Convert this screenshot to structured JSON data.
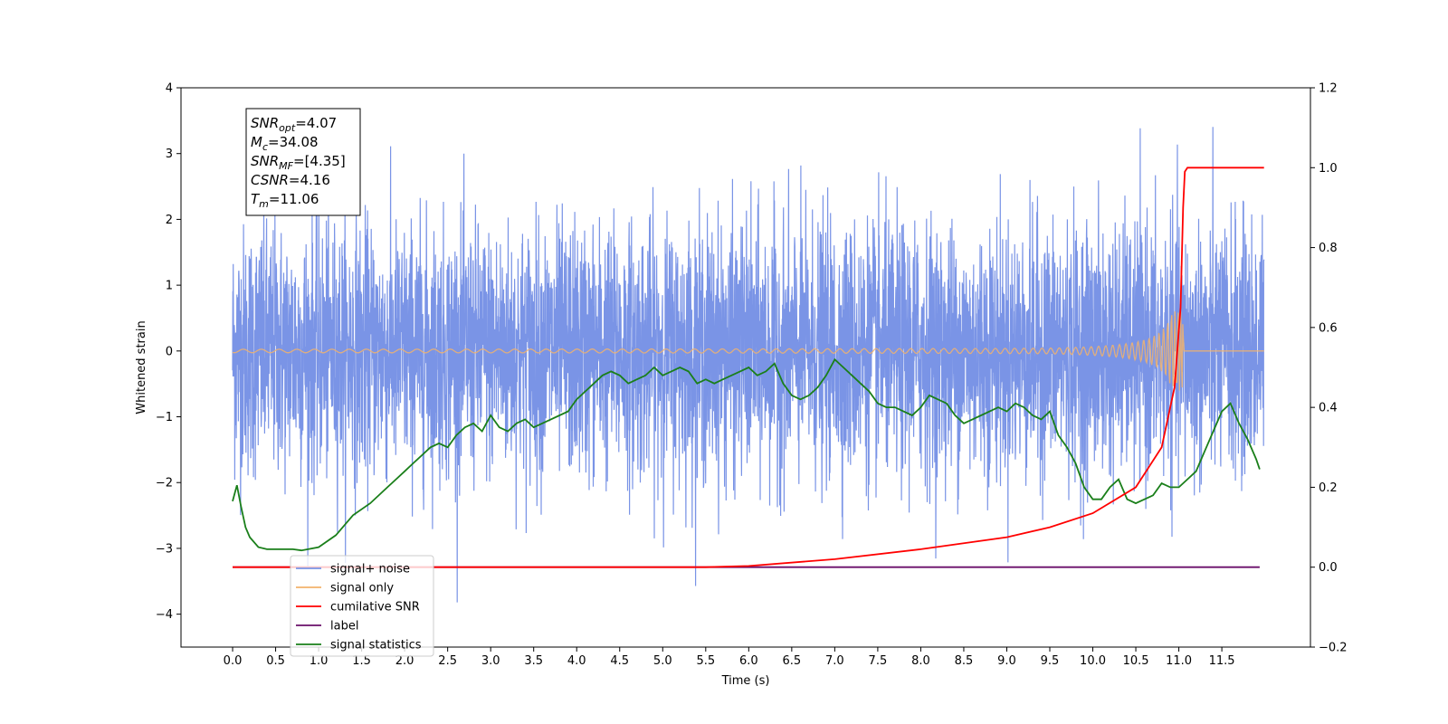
{
  "chart_data": {
    "type": "line",
    "xlabel": "Time (s)",
    "ylabel": "Whitened strain",
    "xlim": [
      -0.6,
      12.53
    ],
    "ylim": [
      -4.5,
      4.0
    ],
    "ylim_right": [
      -0.2,
      1.2
    ],
    "xticks": [
      "0.0",
      "0.5",
      "1.0",
      "1.5",
      "2.0",
      "2.5",
      "3.0",
      "3.5",
      "4.0",
      "4.5",
      "5.0",
      "5.5",
      "6.0",
      "6.5",
      "7.0",
      "7.5",
      "8.0",
      "8.5",
      "9.0",
      "9.5",
      "10.0",
      "10.5",
      "11.0",
      "11.5"
    ],
    "yticks_left": [
      "−4",
      "−3",
      "−2",
      "−1",
      "0",
      "1",
      "2",
      "3",
      "4"
    ],
    "yticks_right": [
      "−0.2",
      "0.0",
      "0.2",
      "0.4",
      "0.6",
      "0.8",
      "1.0",
      "1.2"
    ],
    "grid": false,
    "legend_position": "lower-left",
    "annotation": [
      {
        "base": "SNR",
        "sub": "opt",
        "rest": "=4.07"
      },
      {
        "base": "M",
        "sub": "c",
        "rest": "=34.08"
      },
      {
        "base": "SNR",
        "sub": "MF",
        "rest": "=[4.35]"
      },
      {
        "base": "CSNR",
        "sub": "",
        "rest": "=4.16"
      },
      {
        "base": "T",
        "sub": "m",
        "rest": "=11.06"
      }
    ],
    "series": [
      {
        "name": "signal+ noise",
        "color": "#7a94e6",
        "axis": "left",
        "x_range": [
          0.0,
          11.99
        ],
        "amplitude_envelope": [
          -4.1,
          3.65
        ],
        "description": "dense noise time series"
      },
      {
        "name": "signal only",
        "color": "#f2b36b",
        "axis": "left",
        "merger_time": 11.06
      },
      {
        "name": "cumilative SNR",
        "color": "#ff0000",
        "axis": "right",
        "x": [
          0.0,
          5.5,
          6.0,
          7.0,
          8.0,
          9.0,
          9.5,
          10.0,
          10.5,
          10.8,
          10.95,
          11.02,
          11.05,
          11.07,
          11.1,
          11.99
        ],
        "y": [
          0.0,
          0.0,
          0.003,
          0.02,
          0.045,
          0.075,
          0.1,
          0.135,
          0.2,
          0.3,
          0.45,
          0.65,
          0.9,
          0.99,
          1.0,
          1.0
        ]
      },
      {
        "name": "label",
        "color": "#6a0f6a",
        "axis": "right",
        "x": [
          0.0,
          11.94
        ],
        "y": [
          0.0,
          0.0
        ]
      },
      {
        "name": "signal statistics",
        "color": "#1a7f1a",
        "axis": "right",
        "x": [
          0.0,
          0.05,
          0.1,
          0.15,
          0.2,
          0.3,
          0.4,
          0.5,
          0.7,
          0.8,
          1.0,
          1.2,
          1.4,
          1.6,
          1.8,
          1.9,
          2.0,
          2.1,
          2.2,
          2.3,
          2.4,
          2.5,
          2.6,
          2.7,
          2.8,
          2.9,
          3.0,
          3.1,
          3.2,
          3.3,
          3.4,
          3.5,
          3.6,
          3.7,
          3.8,
          3.9,
          4.0,
          4.1,
          4.2,
          4.3,
          4.4,
          4.5,
          4.6,
          4.7,
          4.8,
          4.9,
          5.0,
          5.1,
          5.2,
          5.3,
          5.4,
          5.5,
          5.6,
          5.7,
          5.8,
          5.9,
          6.0,
          6.1,
          6.2,
          6.3,
          6.4,
          6.5,
          6.6,
          6.7,
          6.8,
          6.9,
          7.0,
          7.1,
          7.2,
          7.3,
          7.4,
          7.5,
          7.6,
          7.7,
          7.8,
          7.9,
          8.0,
          8.1,
          8.2,
          8.3,
          8.4,
          8.5,
          8.6,
          8.7,
          8.8,
          8.9,
          9.0,
          9.1,
          9.2,
          9.3,
          9.4,
          9.5,
          9.6,
          9.7,
          9.8,
          9.9,
          10.0,
          10.1,
          10.2,
          10.3,
          10.4,
          10.5,
          10.6,
          10.7,
          10.8,
          10.9,
          11.0,
          11.1,
          11.2,
          11.3,
          11.4,
          11.5,
          11.6,
          11.7,
          11.8,
          11.9,
          11.94
        ],
        "y": [
          0.165,
          0.205,
          0.15,
          0.1,
          0.075,
          0.05,
          0.045,
          0.045,
          0.045,
          0.042,
          0.05,
          0.08,
          0.13,
          0.16,
          0.2,
          0.22,
          0.24,
          0.26,
          0.28,
          0.3,
          0.31,
          0.3,
          0.33,
          0.35,
          0.36,
          0.34,
          0.38,
          0.35,
          0.34,
          0.36,
          0.37,
          0.35,
          0.36,
          0.37,
          0.38,
          0.39,
          0.42,
          0.44,
          0.46,
          0.48,
          0.49,
          0.48,
          0.46,
          0.47,
          0.48,
          0.5,
          0.48,
          0.49,
          0.5,
          0.49,
          0.46,
          0.47,
          0.46,
          0.47,
          0.48,
          0.49,
          0.5,
          0.48,
          0.49,
          0.51,
          0.46,
          0.43,
          0.42,
          0.43,
          0.45,
          0.48,
          0.52,
          0.5,
          0.48,
          0.46,
          0.44,
          0.41,
          0.4,
          0.4,
          0.39,
          0.38,
          0.4,
          0.43,
          0.42,
          0.41,
          0.38,
          0.36,
          0.37,
          0.38,
          0.39,
          0.4,
          0.39,
          0.41,
          0.4,
          0.38,
          0.37,
          0.39,
          0.33,
          0.3,
          0.26,
          0.2,
          0.17,
          0.17,
          0.2,
          0.22,
          0.17,
          0.16,
          0.17,
          0.18,
          0.21,
          0.2,
          0.2,
          0.22,
          0.24,
          0.29,
          0.34,
          0.39,
          0.41,
          0.36,
          0.32,
          0.27,
          0.245
        ]
      }
    ]
  }
}
